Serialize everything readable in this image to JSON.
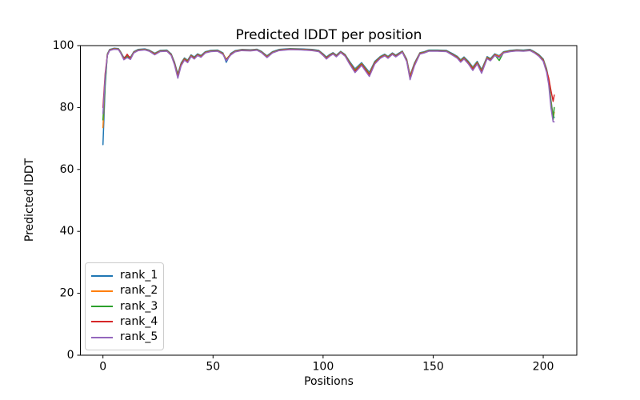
{
  "chart_data": {
    "type": "line",
    "title": "Predicted lDDT per position",
    "xlabel": "Positions",
    "ylabel": "Predicted lDDT",
    "xlim": [
      -10.25,
      215.25
    ],
    "ylim": [
      0,
      100
    ],
    "x_ticks": [
      0,
      50,
      100,
      150,
      200
    ],
    "y_ticks": [
      0,
      20,
      40,
      60,
      80,
      100
    ],
    "grid": false,
    "legend_position": "lower left",
    "x": [
      0,
      1,
      2,
      3,
      5,
      7,
      8,
      9.5,
      11,
      12.5,
      14,
      16,
      19,
      21,
      23.5,
      26,
      29,
      31,
      32.5,
      34,
      35.5,
      37,
      38.5,
      40,
      41.5,
      43,
      44.5,
      46.5,
      49,
      52,
      54.5,
      56,
      58,
      60,
      63,
      67,
      70,
      72,
      74.5,
      77,
      80,
      85,
      90,
      95,
      98,
      100,
      101.5,
      103,
      104.5,
      106,
      108,
      110,
      112,
      114.5,
      117.5,
      121,
      123.5,
      126,
      128,
      129.5,
      131.5,
      133,
      136,
      138,
      139.5,
      141.5,
      144,
      146,
      148,
      152,
      156,
      159,
      161,
      162.5,
      164,
      166,
      168,
      170,
      172,
      174.5,
      176,
      178,
      180,
      182,
      185,
      188,
      191,
      194,
      196,
      198,
      200,
      201.5,
      202.5,
      203.5,
      204.5,
      205
    ],
    "base_y": [
      73.5,
      89,
      97.2,
      98.6,
      99.0,
      98.9,
      97.9,
      96.0,
      96.6,
      96.1,
      97.9,
      98.6,
      98.8,
      98.4,
      97.4,
      98.3,
      98.4,
      97.2,
      94.6,
      90.8,
      94.3,
      95.9,
      95.2,
      96.9,
      96.2,
      97.2,
      96.7,
      97.9,
      98.3,
      98.4,
      97.5,
      95.7,
      97.3,
      98.2,
      98.6,
      98.5,
      98.7,
      98.0,
      96.6,
      97.9,
      98.6,
      98.9,
      98.8,
      98.6,
      98.3,
      97.2,
      96.2,
      97.0,
      97.6,
      96.8,
      98.0,
      97.0,
      94.8,
      92.4,
      94.4,
      91.3,
      94.8,
      96.4,
      97.1,
      96.4,
      97.5,
      96.8,
      98.1,
      95.5,
      90.4,
      94.3,
      97.6,
      97.9,
      98.4,
      98.4,
      98.3,
      97.2,
      96.4,
      95.3,
      96.2,
      94.8,
      93.0,
      94.8,
      92.2,
      96.3,
      95.7,
      97.2,
      96.6,
      97.9,
      98.3,
      98.5,
      98.4,
      98.6,
      97.9,
      97.0,
      95.6,
      92.5,
      89.0,
      82.5,
      77.5,
      77.0
    ],
    "series": [
      {
        "name": "rank_1",
        "color": "#1f77b4",
        "dy": 0.15,
        "dip_spread": 0.1,
        "overrides": {
          "0": 68,
          "1": 87,
          "56": 94.6,
          "204.5": 77.3,
          "205": 76.8
        }
      },
      {
        "name": "rank_2",
        "color": "#ff7f0e",
        "dy": 0,
        "dip_spread": 0.35,
        "overrides": {
          "0": 73.5,
          "205": 78.5
        }
      },
      {
        "name": "rank_3",
        "color": "#2ca02c",
        "dy": -0.05,
        "dip_spread": 0.55,
        "overrides": {
          "0": 76,
          "139.5": 89.6,
          "180": 95.2,
          "205": 80
        }
      },
      {
        "name": "rank_4",
        "color": "#d62728",
        "dy": -0.12,
        "dip_spread": 0.75,
        "overrides": {
          "0": 80,
          "1": 91,
          "11": 97.2,
          "34": 89.9,
          "202.5": 89.5,
          "203.5": 85.5,
          "204.5": 82,
          "205": 84
        }
      },
      {
        "name": "rank_5",
        "color": "#9467bd",
        "dy": -0.2,
        "dip_spread": 1.2,
        "overrides": {
          "0": 78,
          "1": 90,
          "204.5": 75.4,
          "205": 75.4
        }
      }
    ]
  }
}
